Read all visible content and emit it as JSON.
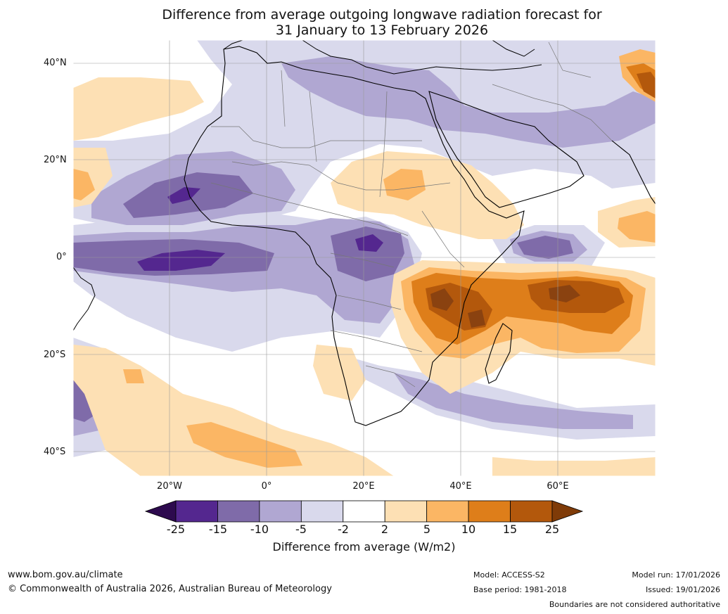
{
  "title": {
    "line1": "Difference from average outgoing longwave radiation forecast for",
    "line2": "31 January to 13 February 2026"
  },
  "map": {
    "lat_labels": [
      "40°N",
      "20°N",
      "0°",
      "20°S",
      "40°S"
    ],
    "lon_labels": [
      "20°W",
      "0°",
      "20°E",
      "40°E",
      "60°E"
    ]
  },
  "colorbar": {
    "ticks": [
      "-25",
      "-15",
      "-10",
      "-5",
      "-2",
      "2",
      "5",
      "10",
      "15",
      "25"
    ],
    "colors": [
      "#54278f",
      "#7f6ba9",
      "#b0a7d2",
      "#d9d9ec",
      "#ffffff",
      "#fde0b4",
      "#fbb664",
      "#de7e1a",
      "#b3580c"
    ],
    "extend_low_color": "#2d0a4e",
    "extend_high_color": "#7f3b08",
    "label": "Difference from average (W/m2)"
  },
  "footer": {
    "website": "www.bom.gov.au/climate",
    "copyright": "© Commonwealth of Australia 2026, Australian Bureau of Meteorology",
    "model": "Model: ACCESS-S2",
    "base_period": "Base period: 1981-2018",
    "model_run": "Model run: 17/01/2026",
    "issued": "Issued: 19/01/2026",
    "disclaimer": "Boundaries are not considered authoritative"
  }
}
